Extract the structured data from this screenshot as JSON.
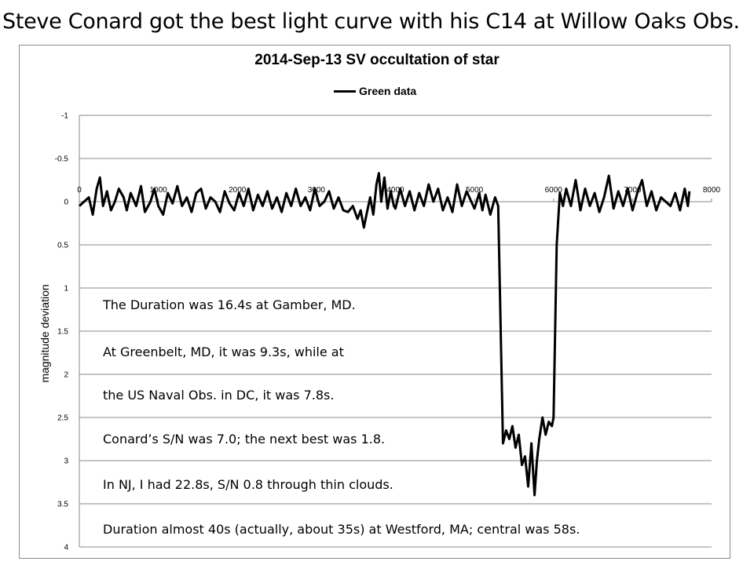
{
  "slide_title": "Steve Conard got the best light curve with his C14 at Willow Oaks Obs.",
  "notes": [
    "The Duration was 16.4s at Gamber, MD.",
    "At Greenbelt, MD, it was 9.3s, while at",
    "the US Naval Obs. in DC, it was 7.8s.",
    "Conard’s S/N was 7.0; the next best was 1.8.",
    "In NJ, I had 22.8s, S/N 0.8 through thin clouds.",
    "Duration almost 40s (actually, about 35s) at Westford, MA; central was 58s."
  ],
  "chart_data": {
    "type": "line",
    "title": "2014-Sep-13 SV occultation of star",
    "ylabel": "magnitude deviation",
    "xlabel": "",
    "xlim": [
      0,
      8000
    ],
    "ylim": [
      -1,
      4
    ],
    "y_inverted": true,
    "x_ticks": [
      0,
      1000,
      2000,
      3000,
      4000,
      5000,
      6000,
      7000,
      8000
    ],
    "y_ticks": [
      -1,
      -0.5,
      0,
      0.5,
      1,
      1.5,
      2,
      2.5,
      3,
      3.5,
      4
    ],
    "grid": "horizontal",
    "legend_position": "top",
    "series": [
      {
        "name": "Green data",
        "color": "#000000",
        "points": [
          [
            0,
            0.05
          ],
          [
            60,
            0.0
          ],
          [
            120,
            -0.05
          ],
          [
            170,
            0.15
          ],
          [
            220,
            -0.15
          ],
          [
            260,
            -0.28
          ],
          [
            300,
            0.05
          ],
          [
            350,
            -0.12
          ],
          [
            400,
            0.1
          ],
          [
            450,
            0.0
          ],
          [
            500,
            -0.15
          ],
          [
            560,
            -0.05
          ],
          [
            600,
            0.1
          ],
          [
            650,
            -0.1
          ],
          [
            720,
            0.05
          ],
          [
            780,
            -0.18
          ],
          [
            830,
            0.12
          ],
          [
            900,
            0.0
          ],
          [
            950,
            -0.15
          ],
          [
            1000,
            0.05
          ],
          [
            1060,
            0.15
          ],
          [
            1120,
            -0.1
          ],
          [
            1180,
            0.02
          ],
          [
            1240,
            -0.18
          ],
          [
            1300,
            0.05
          ],
          [
            1360,
            -0.05
          ],
          [
            1420,
            0.12
          ],
          [
            1480,
            -0.1
          ],
          [
            1540,
            -0.15
          ],
          [
            1600,
            0.08
          ],
          [
            1660,
            -0.05
          ],
          [
            1720,
            0.0
          ],
          [
            1780,
            0.12
          ],
          [
            1840,
            -0.12
          ],
          [
            1900,
            0.02
          ],
          [
            1960,
            0.1
          ],
          [
            2020,
            -0.1
          ],
          [
            2080,
            0.05
          ],
          [
            2140,
            -0.15
          ],
          [
            2200,
            0.1
          ],
          [
            2260,
            -0.08
          ],
          [
            2320,
            0.05
          ],
          [
            2380,
            -0.12
          ],
          [
            2440,
            0.08
          ],
          [
            2500,
            -0.05
          ],
          [
            2560,
            0.12
          ],
          [
            2620,
            -0.1
          ],
          [
            2680,
            0.05
          ],
          [
            2740,
            -0.15
          ],
          [
            2800,
            0.05
          ],
          [
            2860,
            -0.05
          ],
          [
            2920,
            0.1
          ],
          [
            2980,
            -0.15
          ],
          [
            3040,
            0.05
          ],
          [
            3100,
            0.0
          ],
          [
            3160,
            -0.12
          ],
          [
            3220,
            0.08
          ],
          [
            3280,
            -0.05
          ],
          [
            3340,
            0.1
          ],
          [
            3400,
            0.12
          ],
          [
            3460,
            0.05
          ],
          [
            3520,
            0.2
          ],
          [
            3560,
            0.1
          ],
          [
            3600,
            0.3
          ],
          [
            3640,
            0.12
          ],
          [
            3680,
            -0.05
          ],
          [
            3720,
            0.15
          ],
          [
            3760,
            -0.2
          ],
          [
            3790,
            -0.33
          ],
          [
            3820,
            0.0
          ],
          [
            3860,
            -0.28
          ],
          [
            3900,
            0.08
          ],
          [
            3940,
            -0.12
          ],
          [
            3980,
            0.05
          ],
          [
            4000,
            0.08
          ],
          [
            4060,
            -0.15
          ],
          [
            4120,
            0.05
          ],
          [
            4180,
            -0.12
          ],
          [
            4240,
            0.1
          ],
          [
            4300,
            -0.1
          ],
          [
            4360,
            0.05
          ],
          [
            4420,
            -0.2
          ],
          [
            4480,
            0.0
          ],
          [
            4540,
            -0.15
          ],
          [
            4600,
            0.1
          ],
          [
            4660,
            -0.05
          ],
          [
            4720,
            0.12
          ],
          [
            4780,
            -0.2
          ],
          [
            4840,
            0.05
          ],
          [
            4900,
            -0.12
          ],
          [
            5000,
            0.08
          ],
          [
            5060,
            -0.1
          ],
          [
            5100,
            0.1
          ],
          [
            5140,
            -0.08
          ],
          [
            5200,
            0.15
          ],
          [
            5260,
            -0.05
          ],
          [
            5300,
            0.05
          ],
          [
            5360,
            2.8
          ],
          [
            5400,
            2.65
          ],
          [
            5440,
            2.75
          ],
          [
            5480,
            2.6
          ],
          [
            5520,
            2.85
          ],
          [
            5560,
            2.7
          ],
          [
            5600,
            3.05
          ],
          [
            5640,
            2.95
          ],
          [
            5680,
            3.3
          ],
          [
            5720,
            2.8
          ],
          [
            5760,
            3.4
          ],
          [
            5790,
            3.0
          ],
          [
            5820,
            2.75
          ],
          [
            5860,
            2.5
          ],
          [
            5900,
            2.7
          ],
          [
            5940,
            2.55
          ],
          [
            5980,
            2.6
          ],
          [
            6000,
            2.5
          ],
          [
            6040,
            0.5
          ],
          [
            6080,
            -0.1
          ],
          [
            6120,
            0.05
          ],
          [
            6160,
            -0.15
          ],
          [
            6220,
            0.05
          ],
          [
            6280,
            -0.25
          ],
          [
            6340,
            0.1
          ],
          [
            6400,
            -0.15
          ],
          [
            6460,
            0.05
          ],
          [
            6520,
            -0.1
          ],
          [
            6580,
            0.12
          ],
          [
            6640,
            -0.05
          ],
          [
            6700,
            -0.3
          ],
          [
            6760,
            0.08
          ],
          [
            6820,
            -0.12
          ],
          [
            6880,
            0.05
          ],
          [
            6940,
            -0.15
          ],
          [
            7000,
            0.1
          ],
          [
            7060,
            -0.1
          ],
          [
            7120,
            -0.25
          ],
          [
            7180,
            0.05
          ],
          [
            7240,
            -0.12
          ],
          [
            7300,
            0.1
          ],
          [
            7360,
            -0.05
          ],
          [
            7420,
            0.0
          ],
          [
            7480,
            0.05
          ],
          [
            7540,
            -0.1
          ],
          [
            7600,
            0.1
          ],
          [
            7660,
            -0.15
          ],
          [
            7700,
            0.05
          ],
          [
            7720,
            -0.12
          ]
        ]
      }
    ]
  }
}
